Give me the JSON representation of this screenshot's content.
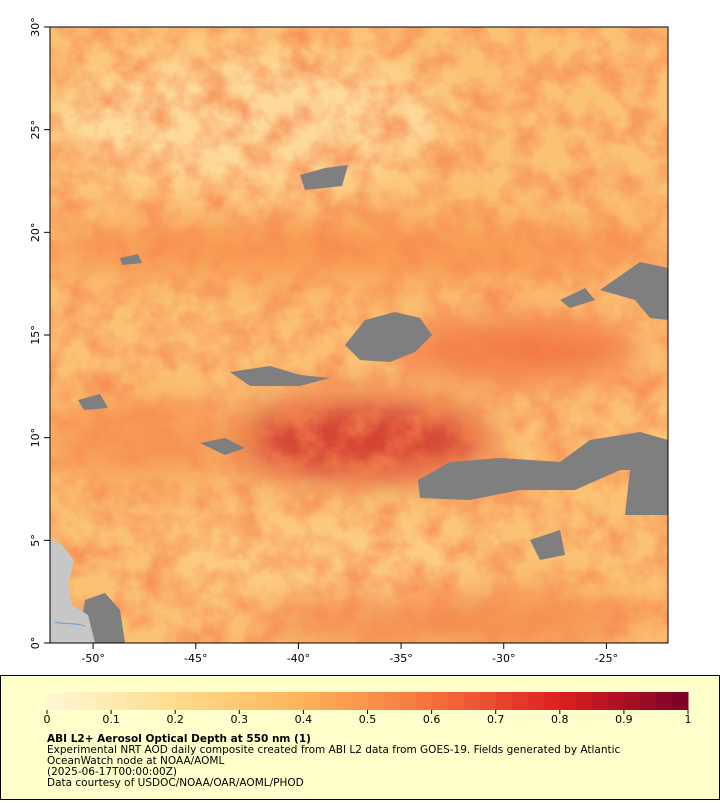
{
  "map": {
    "type": "map",
    "xlim": [
      -52.1,
      -22
    ],
    "ylim": [
      0,
      30
    ],
    "xticks": [
      {
        "value": -50,
        "label": "-50°"
      },
      {
        "value": -45,
        "label": "-45°"
      },
      {
        "value": -40,
        "label": "-40°"
      },
      {
        "value": -35,
        "label": "-35°"
      },
      {
        "value": -30,
        "label": "-30°"
      },
      {
        "value": -25,
        "label": "-25°"
      }
    ],
    "yticks": [
      {
        "value": 0,
        "label": "0°"
      },
      {
        "value": 5,
        "label": "5°"
      },
      {
        "value": 10,
        "label": "10°"
      },
      {
        "value": 15,
        "label": "15°"
      },
      {
        "value": 20,
        "label": "20°"
      },
      {
        "value": 25,
        "label": "25°"
      },
      {
        "value": 30,
        "label": "30°"
      }
    ]
  },
  "colorbar": {
    "lim": [
      0,
      1
    ],
    "ticks": [
      0,
      0.1,
      0.2,
      0.3,
      0.4,
      0.5,
      0.6,
      0.7,
      0.8,
      0.9,
      1
    ],
    "steps": 40,
    "color_stops": [
      [
        0,
        "#fff7d6"
      ],
      [
        0.2,
        "#fedc8c"
      ],
      [
        0.4,
        "#fdb35a"
      ],
      [
        0.6,
        "#f7703e"
      ],
      [
        0.8,
        "#dc1f20"
      ],
      [
        1,
        "#7a0026"
      ]
    ]
  },
  "caption": {
    "title": "ABI L2+ Aerosol Optical Depth at 550 nm (1)",
    "lines": [
      "Experimental NRT AOD daily composite created from ABI L2 data from GOES-19. Fields generated by Atlantic",
      "OceanWatch node at NOAA/AOML",
      "(2025-06-17T00:00:00Z)",
      "Data courtesy of USDOC/NOAA/OAR/AOML/PHOD"
    ]
  }
}
